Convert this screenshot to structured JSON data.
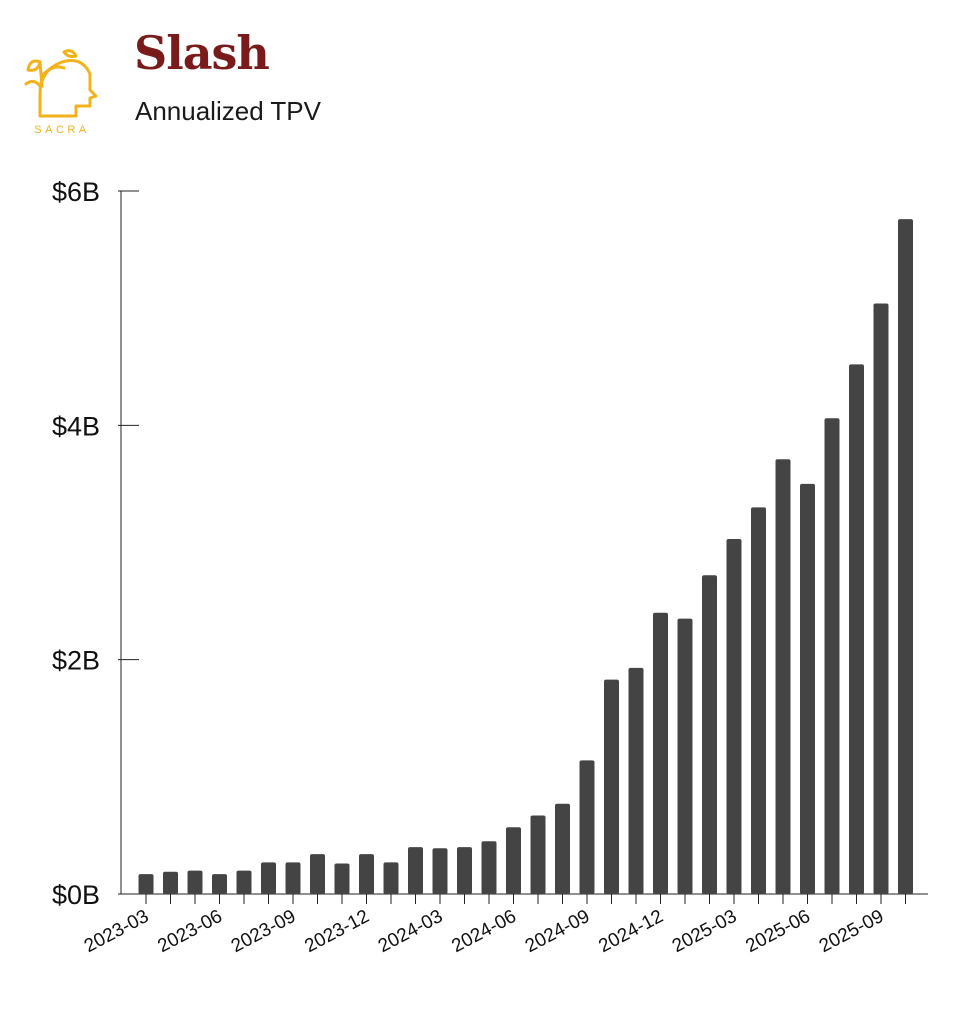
{
  "brand": {
    "logo_text": "SACRA",
    "logo_color": "#f2b21b",
    "company": "Slash",
    "company_color": "#7a1b1b"
  },
  "chart_data": {
    "type": "bar",
    "title": "Slash",
    "subtitle": "Annualized TPV",
    "xlabel": "",
    "ylabel": "",
    "ylim": [
      0,
      6
    ],
    "y_unit": "billions USD",
    "y_ticks": [
      {
        "value": 0,
        "label": "$0B"
      },
      {
        "value": 2,
        "label": "$2B"
      },
      {
        "value": 4,
        "label": "$4B"
      },
      {
        "value": 6,
        "label": "$6B"
      }
    ],
    "x_tick_labels": [
      "2023-03",
      "2023-06",
      "2023-09",
      "2023-12",
      "2024-03",
      "2024-06",
      "2024-09",
      "2024-12",
      "2025-03",
      "2025-06",
      "2025-09"
    ],
    "bar_color": "#444444",
    "grid": false,
    "categories": [
      "2023-03",
      "2023-04",
      "2023-05",
      "2023-06",
      "2023-07",
      "2023-08",
      "2023-09",
      "2023-10",
      "2023-11",
      "2023-12",
      "2024-01",
      "2024-02",
      "2024-03",
      "2024-04",
      "2024-05",
      "2024-06",
      "2024-07",
      "2024-08",
      "2024-09",
      "2024-10",
      "2024-11",
      "2024-12",
      "2025-01",
      "2025-02",
      "2025-03",
      "2025-04",
      "2025-05",
      "2025-06",
      "2025-07",
      "2025-08",
      "2025-09",
      "2025-10"
    ],
    "values": [
      0.17,
      0.19,
      0.2,
      0.17,
      0.2,
      0.27,
      0.27,
      0.34,
      0.26,
      0.34,
      0.27,
      0.4,
      0.39,
      0.4,
      0.45,
      0.57,
      0.67,
      0.77,
      1.14,
      1.83,
      1.93,
      2.4,
      2.35,
      2.72,
      3.03,
      3.3,
      3.71,
      3.5,
      4.06,
      4.52,
      5.04,
      5.76
    ]
  }
}
